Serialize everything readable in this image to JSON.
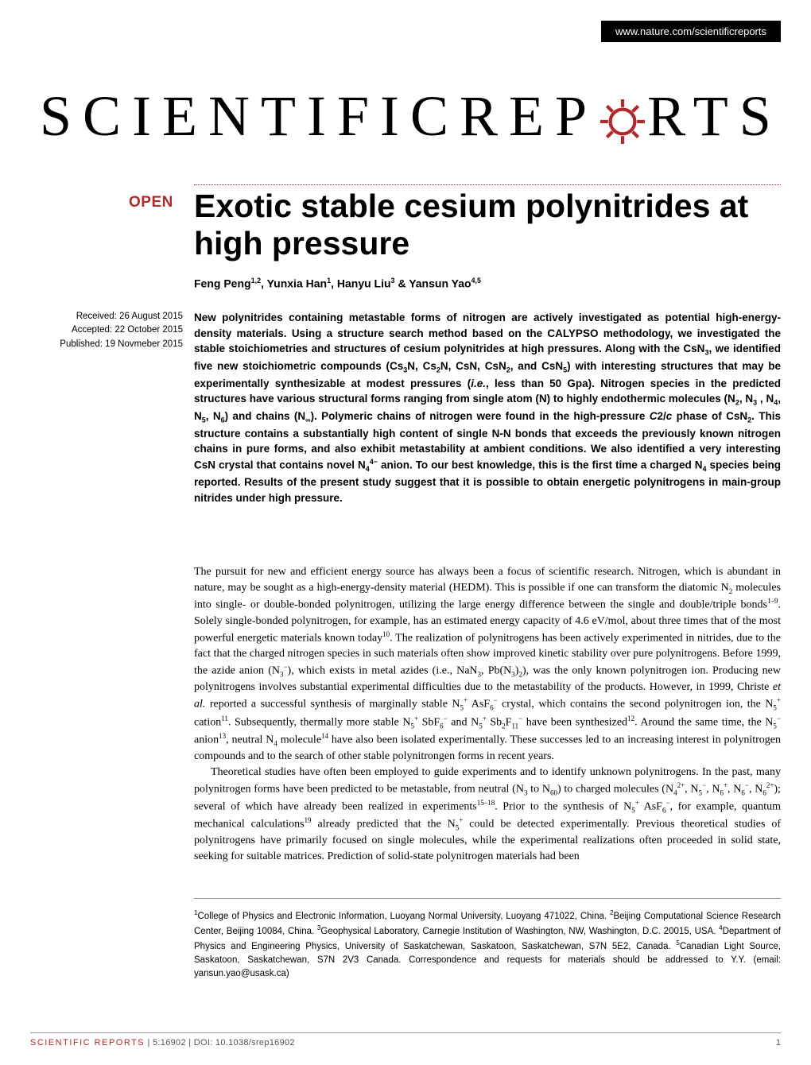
{
  "header": {
    "url": "www.nature.com/scientificreports"
  },
  "journal": {
    "name_part1": "SCIENTIFIC",
    "name_part2": "REP",
    "name_part3": "RTS",
    "gear_color": "#b0292b"
  },
  "open_badge": "OPEN",
  "article": {
    "title": "Exotic stable cesium polynitrides at high pressure",
    "authors_html": "Feng Peng<sup>1,2</sup>, Yunxia Han<sup>1</sup>, Hanyu Liu<sup>3</sup> & Yansun Yao<sup>4,5</sup>"
  },
  "metadata": {
    "received": "Received: 26 August 2015",
    "accepted": "Accepted: 22 October 2015",
    "published": "Published: 19 Novmeber 2015"
  },
  "abstract_html": "New polynitrides containing metastable forms of nitrogen are actively investigated as potential high-energy-density materials. Using a structure search method based on the CALYPSO methodology, we investigated the stable stoichiometries and structures of cesium polynitrides at high pressures. Along with the CsN<sub>3</sub>, we identified five new stoichiometric compounds (Cs<sub>3</sub>N, Cs<sub>2</sub>N, CsN, CsN<sub>2</sub>, and CsN<sub>5</sub>) with interesting structures that may be experimentally synthesizable at modest pressures (<span class=\"italic\">i.e.</span>, less than 50 Gpa). Nitrogen species in the predicted structures have various structural forms ranging from single atom (N) to highly endothermic molecules (N<sub>2</sub>, N<sub>3</sub> , N<sub>4</sub>, N<sub>5</sub>, N<sub>6</sub>) and chains (N<sub>∞</sub>). Polymeric chains of nitrogen were found in the high-pressure <span class=\"italic\">C</span>2/<span class=\"italic\">c</span> phase of CsN<sub>2</sub>. This structure contains a substantially high content of single N-N bonds that exceeds the previously known nitrogen chains in pure forms, and also exhibit metastability at ambient conditions. We also identified a very interesting CsN crystal that contains novel N<sub>4</sub><sup>4−</sup> anion. To our best knowledge, this is the first time a charged N<sub>4</sub> species being reported. Results of the present study suggest that it is possible to obtain energetic polynitrogens in main-group nitrides under high pressure.",
  "body_para1_html": "The pursuit for new and efficient energy source has always been a focus of scientific research. Nitrogen, which is abundant in nature, may be sought as a high-energy-density material (HEDM). This is possible if one can transform the diatomic N<sub>2</sub> molecules into single- or double-bonded polynitrogen, utilizing the large energy difference between the single and double/triple bonds<sup>1–9</sup>. Solely single-bonded polynitrogen, for example, has an estimated energy capacity of 4.6 eV/mol, about three times that of the most powerful energetic materials known today<sup>10</sup>. The realization of polynitrogens has been actively experimented in nitrides, due to the fact that the charged nitrogen species in such materials often show improved kinetic stability over pure polynitrogens. Before 1999, the azide anion (N<sub>3</sub><sup>−</sup>), which exists in metal azides (i.e., NaN<sub>3</sub>, Pb(N<sub>3</sub>)<sub>2</sub>), was the only known polynitrogen ion. Producing new polynitrogens involves substantial experimental difficulties due to the metastability of the products. However, in 1999, Christe <span class=\"italic\">et al.</span> reported a successful synthesis of marginally stable N<sub>5</sub><sup>+</sup> AsF<sub>6</sub><sup>−</sup> crystal, which contains the second polynitrogen ion, the N<sub>5</sub><sup>+</sup> cation<sup>11</sup>. Subsequently, thermally more stable N<sub>5</sub><sup>+</sup> SbF<sub>6</sub><sup>−</sup> and N<sub>5</sub><sup>+</sup> Sb<sub>2</sub>F<sub>11</sub><sup>−</sup> have been synthesized<sup>12</sup>. Around the same time, the N<sub>5</sub><sup>−</sup> anion<sup>13</sup>, neutral N<sub>4</sub> molecule<sup>14</sup> have also been isolated experimentally. These successes led to an increasing interest in polynitrogen compounds and to the search of other stable polynitrongen forms in recent years.",
  "body_para2_html": "Theoretical studies have often been employed to guide experiments and to identify unknown polynitrogens. In the past, many polynitrogen forms have been predicted to be metastable, from neutral (N<sub>3</sub> to N<sub>60</sub>) to charged molecules (N<sub>4</sub><sup>2+</sup>, N<sub>5</sub><sup>−</sup>, N<sub>6</sub><sup>+</sup>, N<sub>6</sub><sup>−</sup>, N<sub>6</sub><sup>2+</sup>); several of which have already been realized in experiments<sup>15–18</sup>. Prior to the synthesis of N<sub>5</sub><sup>+</sup> AsF<sub>6</sub><sup>−</sup>, for example, quantum mechanical calculations<sup>19</sup> already predicted that the N<sub>5</sub><sup>+</sup> could be detected experimentally. Previous theoretical studies of polynitrogens have primarily focused on single molecules, while the experimental realizations often proceeded in solid state, seeking for suitable matrices. Prediction of solid-state polynitrogen materials had been",
  "affiliations_html": "<sup>1</sup>College of Physics and Electronic Information, Luoyang Normal University, Luoyang 471022, China. <sup>2</sup>Beijing Computational Science Research Center, Beijing 10084, China. <sup>3</sup>Geophysical Laboratory, Carnegie Institution of Washington, NW, Washington, D.C. 20015, USA. <sup>4</sup>Department of Physics and Engineering Physics, University of Saskatchewan, Saskatoon, Saskatchewan, S7N 5E2, Canada. <sup>5</sup>Canadian Light Source, Saskatoon, Saskatchewan, S7N 2V3 Canada. Correspondence and requests for materials should be addressed to Y.Y. (email: yansun.yao@usask.ca)",
  "footer": {
    "journal_label": "SCIENTIFIC REPORTS",
    "citation": " | 5:16902 | DOI: 10.1038/srep16902",
    "page": "1"
  },
  "colors": {
    "accent": "#b0292b",
    "text": "#000000",
    "muted": "#555555",
    "background": "#ffffff"
  }
}
